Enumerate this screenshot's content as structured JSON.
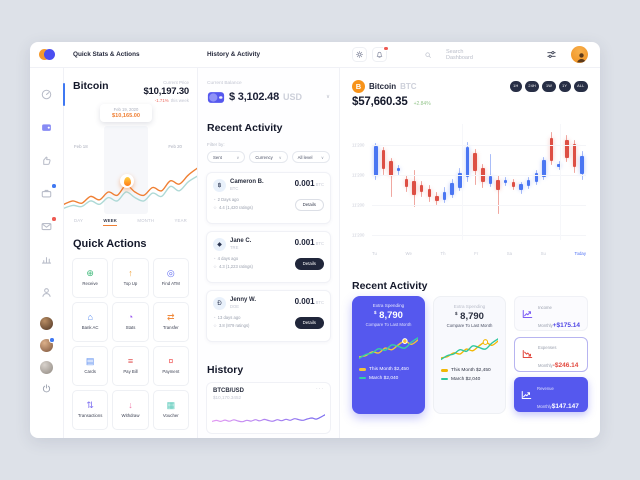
{
  "header": {
    "left_title": "Quick Stats & Actions",
    "middle_title": "History & Activity"
  },
  "topbar": {
    "search_placeholder": "Search Dashboard",
    "icons": [
      "settings-icon",
      "notifications-icon",
      "search-icon",
      "filter-icon",
      "user-avatar"
    ],
    "notification_alert": true
  },
  "sidebar": {
    "nav": [
      {
        "id": "dashboard",
        "icon": "dashboard-icon",
        "active": true
      },
      {
        "id": "wallet",
        "icon": "wallet-icon",
        "accent": "#878bf4"
      },
      {
        "id": "like",
        "icon": "like-icon"
      },
      {
        "id": "briefcase",
        "icon": "briefcase-icon",
        "badge": "blue"
      },
      {
        "id": "messages",
        "icon": "mail-icon",
        "badge": "red"
      },
      {
        "id": "analytics",
        "icon": "analytics-icon"
      },
      {
        "id": "profile",
        "icon": "user-icon"
      }
    ],
    "avatars": [
      {
        "id": "contact-1"
      },
      {
        "id": "contact-2",
        "badge": "blue"
      },
      {
        "id": "contact-3"
      }
    ],
    "power": {
      "icon": "power-icon"
    }
  },
  "left_panel": {
    "coin_name": "Bitcoin",
    "current_price_label": "Current Price",
    "price": "$10,197.30",
    "change": "-1.71%",
    "change_period": "this week",
    "tooltip": {
      "date": "Feb 19, 2020",
      "value": "$10,165.00"
    },
    "date_left": "Feb 18",
    "date_right": "Feb 20",
    "tabs": [
      "DAY",
      "WEEK",
      "MONTH",
      "YEAR"
    ],
    "active_tab": "WEEK",
    "quick_actions_title": "Quick Actions",
    "quick_actions": [
      {
        "label": "Receive",
        "icon": "receive-icon",
        "glyph": "⊕",
        "color": "#3cb878"
      },
      {
        "label": "Top Up",
        "icon": "top-up-icon",
        "glyph": "↑",
        "color": "#f0a23c"
      },
      {
        "label": "Find ATM",
        "icon": "find-atm-icon",
        "glyph": "◎",
        "color": "#5b67f0"
      },
      {
        "label": "Bank AC",
        "icon": "bank-account-icon",
        "glyph": "⌂",
        "color": "#4f86f0"
      },
      {
        "label": "Stats",
        "icon": "stats-icon",
        "glyph": "◔",
        "color": "#9b59f0"
      },
      {
        "label": "Transfer",
        "icon": "transfer-icon",
        "glyph": "⇄",
        "color": "#f08a3c"
      },
      {
        "label": "Cards",
        "icon": "cards-icon",
        "glyph": "▤",
        "color": "#5b8df0"
      },
      {
        "label": "Pay Bill",
        "icon": "pay-bill-icon",
        "glyph": "≡",
        "color": "#e25555"
      },
      {
        "label": "Payment",
        "icon": "payment-icon",
        "glyph": "¤",
        "color": "#f06060"
      },
      {
        "label": "Transactions",
        "icon": "transactions-icon",
        "glyph": "⇅",
        "color": "#7b6cf0"
      },
      {
        "label": "Withdraw",
        "icon": "withdraw-icon",
        "glyph": "↓",
        "color": "#f078a8"
      },
      {
        "label": "Voucher",
        "icon": "voucher-icon",
        "glyph": "▦",
        "color": "#58c9b9"
      }
    ]
  },
  "middle_panel": {
    "balance_label": "Current Balance",
    "balance_amount": "$ 3,102.48",
    "balance_currency": "USD",
    "recent_title": "Recent Activity",
    "filter_label": "Filter by:",
    "filters": [
      "Sent",
      "Currency",
      "All level"
    ],
    "activities": [
      {
        "name": "Cameron B.",
        "ticker": "BTC",
        "glyph": "฿",
        "amount": "0.001",
        "unit": "BTC",
        "time": "2 Days ago",
        "rating": "4.4 (1,420 ratings)",
        "button": "Details",
        "button_style": "outline"
      },
      {
        "name": "Jane C.",
        "ticker": "TRE",
        "glyph": "◆",
        "amount": "0.001",
        "unit": "BTC",
        "time": "4 days ago",
        "rating": "4.3 (1,223 ratings)",
        "button": "Details",
        "button_style": "dark"
      },
      {
        "name": "Jenny W.",
        "ticker": "DOE",
        "glyph": "Ð",
        "amount": "0.001",
        "unit": "BTC",
        "time": "13 days ago",
        "rating": "3.8 (879 ratings)",
        "button": "Details",
        "button_style": "dark"
      }
    ],
    "history_title": "History",
    "history": {
      "pair": "BTCB/USD",
      "value": "$10,170.3452",
      "menu": "···"
    }
  },
  "right_panel": {
    "coin": {
      "name": "Bitcoin",
      "ticker": "BTC",
      "symbol": "B",
      "price": "$57,660.35",
      "change": "+2.84%"
    },
    "ranges": [
      "1H",
      "24H",
      "1W",
      "1Y",
      "ALL"
    ],
    "recent_title": "Recent Activity",
    "spending_cards": [
      {
        "variant": "filled",
        "label": "Extra Spending",
        "currency": "$",
        "amount": "8,790",
        "compare": "Compare To Last Month",
        "legend": [
          {
            "label": "This Month $2,450",
            "color": "#f5c33b"
          },
          {
            "label": "March $2,040",
            "color": "#35d0a5"
          }
        ]
      },
      {
        "variant": "light",
        "label": "Extra Spending",
        "currency": "$",
        "amount": "8,790",
        "compare": "Compare To Last Month",
        "legend": [
          {
            "label": "This Month $2,450",
            "color": "#f2b705"
          },
          {
            "label": "March $2,040",
            "color": "#2fc79e"
          }
        ]
      }
    ],
    "stat_cards": [
      {
        "label": "Income Monthly",
        "value": "+$175.14",
        "variant": "plain",
        "icon": "trend-up-icon",
        "icon_color": "#7c5cf5"
      },
      {
        "label": "Expenses Monthly",
        "value": "-$246.14",
        "variant": "outline",
        "icon": "trend-down-icon",
        "icon_color": "#e2493f"
      },
      {
        "label": "Revenue Monthly",
        "value": "$147.147",
        "variant": "filled",
        "icon": "trend-up-icon",
        "icon_color": "#ffffff"
      }
    ]
  },
  "chart_data": [
    {
      "id": "bitcoin-price-week",
      "type": "line",
      "title": "Bitcoin",
      "timeframe": "WEEK",
      "x_labels": [
        "Feb 18",
        "Feb 20"
      ],
      "highlight": {
        "date": "Feb 19, 2020",
        "price": "$10,165.00"
      },
      "series": [
        {
          "name": "price",
          "color": "#ef7f33",
          "values": [
            12,
            18,
            14,
            26,
            20,
            34,
            28,
            46,
            34,
            28,
            42,
            36,
            54,
            48,
            64,
            76
          ]
        },
        {
          "name": "baseline",
          "color": "#aed9d6",
          "values": [
            5,
            10,
            8,
            18,
            12,
            24,
            18,
            34,
            24,
            18,
            32,
            26,
            44,
            36,
            52,
            62
          ]
        }
      ]
    },
    {
      "id": "btc-usd-candles",
      "type": "candlestick",
      "pair": "BTC/USD",
      "y_ticks": [
        "11'200",
        "11'200",
        "11'200",
        "11'200"
      ],
      "x_labels": [
        "Tu",
        "We",
        "Th",
        "Fr",
        "Sa",
        "Su",
        "Today"
      ],
      "up_color": "#4a76f2",
      "down_color": "#dd4f44",
      "candles": [
        [
          56,
          87,
          52,
          84
        ],
        [
          80,
          83,
          57,
          62
        ],
        [
          70,
          73,
          36,
          56
        ],
        [
          60,
          66,
          57,
          63
        ],
        [
          53,
          57,
          41,
          45
        ],
        [
          51,
          61,
          26,
          38
        ],
        [
          47,
          51,
          36,
          41
        ],
        [
          43,
          47,
          31,
          36
        ],
        [
          37,
          41,
          28,
          32
        ],
        [
          33,
          45,
          30,
          41
        ],
        [
          38,
          53,
          35,
          49
        ],
        [
          44,
          63,
          41,
          59
        ],
        [
          55,
          88,
          50,
          83
        ],
        [
          77,
          81,
          47,
          60
        ],
        [
          63,
          67,
          44,
          50
        ],
        [
          48,
          76,
          45,
          56
        ],
        [
          52,
          57,
          20,
          42
        ],
        [
          49,
          55,
          46,
          52
        ],
        [
          50,
          53,
          42,
          45
        ],
        [
          42,
          50,
          39,
          48
        ],
        [
          46,
          55,
          43,
          52
        ],
        [
          50,
          61,
          47,
          59
        ],
        [
          55,
          74,
          52,
          71
        ],
        [
          92,
          97,
          66,
          70
        ],
        [
          64,
          70,
          61,
          67
        ],
        [
          90,
          94,
          69,
          73
        ],
        [
          86,
          90,
          58,
          64
        ],
        [
          58,
          79,
          52,
          75
        ]
      ]
    },
    {
      "id": "history-btcb-usd",
      "type": "line",
      "pair": "BTCB/USD",
      "last": "$10,170.3452",
      "series": [
        {
          "name": "BTCB/USD",
          "color": "#b77af0",
          "values": [
            32,
            40,
            33,
            42,
            34,
            44,
            36,
            31,
            41,
            35,
            45,
            37,
            47,
            39,
            34,
            45,
            38,
            48,
            41,
            52,
            45,
            41,
            51,
            57,
            49,
            63,
            80
          ]
        }
      ]
    },
    {
      "id": "extra-spending-compare",
      "type": "line",
      "title": "Extra Spending",
      "series": [
        {
          "name": "This Month $2,450",
          "color": "#f2b705",
          "values": [
            12,
            16,
            30,
            26,
            44,
            38,
            56,
            70,
            58,
            74
          ]
        },
        {
          "name": "March $2,040",
          "color": "#2fc79e",
          "values": [
            6,
            20,
            26,
            42,
            36,
            56,
            50,
            44,
            66,
            82
          ]
        }
      ]
    }
  ]
}
